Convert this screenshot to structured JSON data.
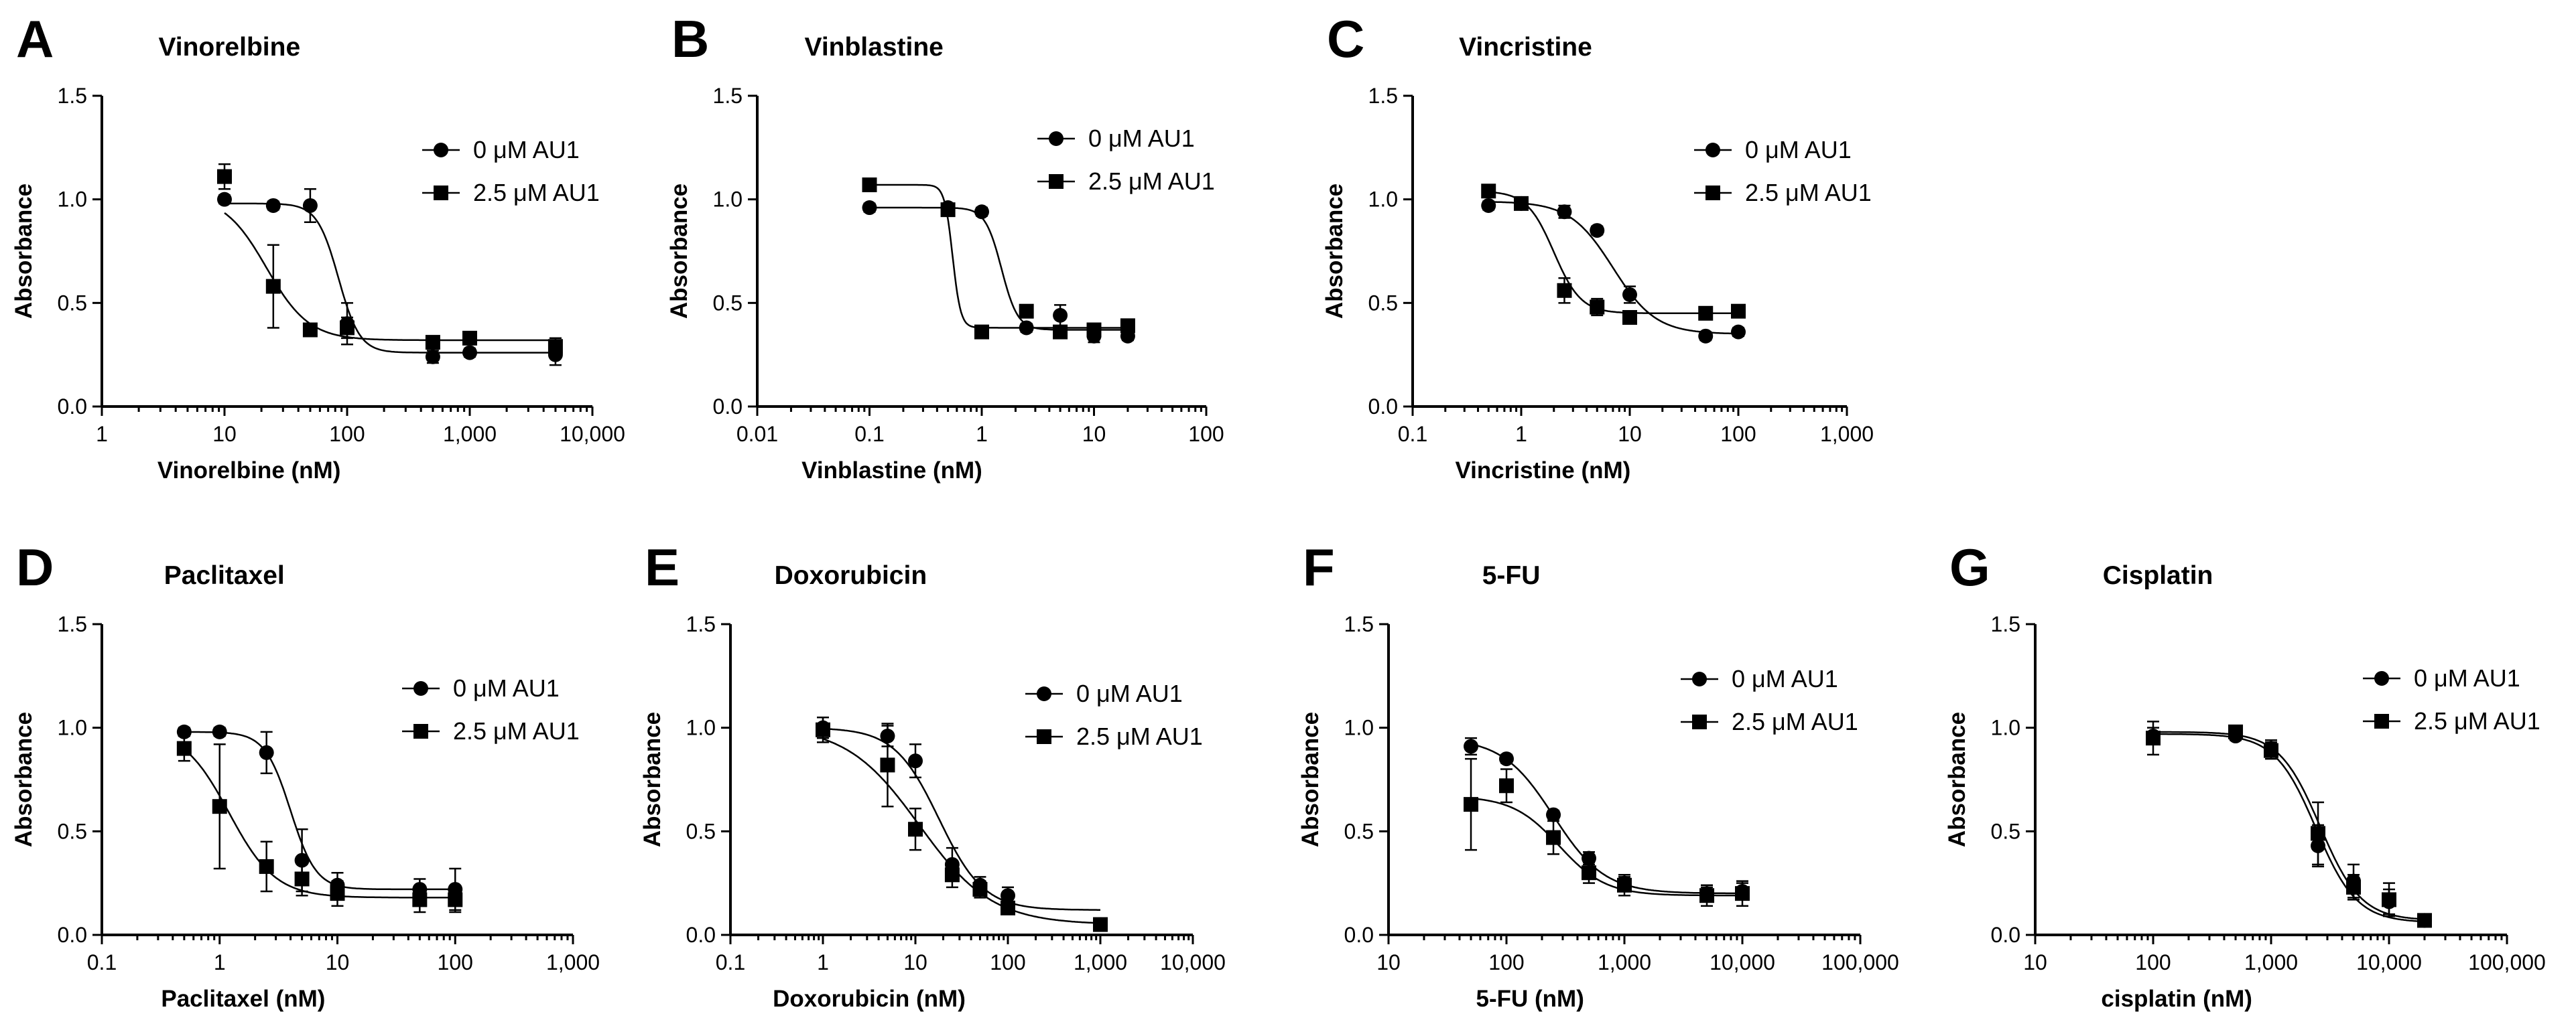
{
  "chart_data": [
    {
      "type": "scatter",
      "letter": "A",
      "title": "Vinorelbine",
      "xlabel": "Vinorelbine (nM)",
      "ylabel": "Absorbance",
      "xscale": "log",
      "xlim": [
        1,
        10000
      ],
      "ylim": [
        0,
        1.5
      ],
      "xticks": [
        1,
        10,
        100,
        1000,
        10000
      ],
      "xtick_labels": [
        "1",
        "10",
        "100",
        "1,000",
        "10,000"
      ],
      "yticks": [
        0,
        0.5,
        1,
        1.5
      ],
      "ytick_labels": [
        "0.0",
        "0.5",
        "1.0",
        "1.5"
      ],
      "legend_position": "top-right",
      "series": [
        {
          "name": "0 μM AU1",
          "marker": "circle",
          "x": [
            10,
            25,
            50,
            100,
            500,
            1000,
            5000
          ],
          "y": [
            1.0,
            0.97,
            0.97,
            0.4,
            0.24,
            0.26,
            0.25
          ],
          "err": [
            0.02,
            0.02,
            0.08,
            0.1,
            0.03,
            0.02,
            0.05
          ],
          "fit": {
            "top": 0.98,
            "bottom": 0.26,
            "ec50": 85,
            "hill": 5
          }
        },
        {
          "name": "2.5 μM AU1",
          "marker": "square",
          "x": [
            10,
            25,
            50,
            100,
            500,
            1000,
            5000
          ],
          "y": [
            1.11,
            0.58,
            0.37,
            0.38,
            0.31,
            0.33,
            0.29
          ],
          "err": [
            0.06,
            0.2,
            0.02,
            0.05,
            0.02,
            0.02,
            0.04
          ],
          "fit": {
            "top": 1.02,
            "bottom": 0.32,
            "ec50": 22,
            "hill": 2.5
          }
        }
      ]
    },
    {
      "type": "scatter",
      "letter": "B",
      "title": "Vinblastine",
      "xlabel": "Vinblastine (nM)",
      "ylabel": "Absorbance",
      "xscale": "log",
      "xlim": [
        0.01,
        100
      ],
      "ylim": [
        0,
        1.5
      ],
      "xticks": [
        0.01,
        0.1,
        1,
        10,
        100
      ],
      "xtick_labels": [
        "0.01",
        "0.1",
        "1",
        "10",
        "100"
      ],
      "yticks": [
        0,
        0.5,
        1,
        1.5
      ],
      "ytick_labels": [
        "0.0",
        "0.5",
        "1.0",
        "1.5"
      ],
      "legend_position": "top-right",
      "series": [
        {
          "name": "0 μM AU1",
          "marker": "circle",
          "x": [
            0.1,
            0.5,
            1,
            2.5,
            5,
            10,
            20
          ],
          "y": [
            0.96,
            0.96,
            0.94,
            0.38,
            0.44,
            0.34,
            0.34
          ],
          "err": [
            0.02,
            0.02,
            0.02,
            0.02,
            0.05,
            0.03,
            0.02
          ],
          "fit": {
            "top": 0.96,
            "bottom": 0.37,
            "ec50": 1.5,
            "hill": 6
          }
        },
        {
          "name": "2.5 μM AU1",
          "marker": "square",
          "x": [
            0.1,
            0.5,
            1,
            2.5,
            5,
            10,
            20
          ],
          "y": [
            1.07,
            0.95,
            0.36,
            0.46,
            0.36,
            0.37,
            0.39
          ],
          "err": [
            0.01,
            0.02,
            0.01,
            0.02,
            0.02,
            0.03,
            0.02
          ],
          "fit": {
            "top": 1.07,
            "bottom": 0.38,
            "ec50": 0.55,
            "hill": 12
          }
        }
      ]
    },
    {
      "type": "scatter",
      "letter": "C",
      "title": "Vincristine",
      "xlabel": "Vincristine (nM)",
      "ylabel": "Absorbance",
      "xscale": "log",
      "xlim": [
        0.1,
        1000
      ],
      "ylim": [
        0,
        1.5
      ],
      "xticks": [
        0.1,
        1,
        10,
        100,
        1000
      ],
      "xtick_labels": [
        "0.1",
        "1",
        "10",
        "100",
        "1,000"
      ],
      "yticks": [
        0,
        0.5,
        1,
        1.5
      ],
      "ytick_labels": [
        "0.0",
        "0.5",
        "1.0",
        "1.5"
      ],
      "legend_position": "top-right",
      "series": [
        {
          "name": "0 μM AU1",
          "marker": "circle",
          "x": [
            0.5,
            1,
            2.5,
            5,
            10,
            50,
            100
          ],
          "y": [
            0.97,
            0.98,
            0.94,
            0.85,
            0.54,
            0.34,
            0.36
          ],
          "err": [
            0.02,
            0.02,
            0.03,
            0.02,
            0.04,
            0.02,
            0.02
          ],
          "fit": {
            "top": 0.99,
            "bottom": 0.35,
            "ec50": 7,
            "hill": 2.2
          }
        },
        {
          "name": "2.5 μM AU1",
          "marker": "square",
          "x": [
            0.5,
            1,
            2.5,
            5,
            10,
            50,
            100
          ],
          "y": [
            1.04,
            0.98,
            0.56,
            0.48,
            0.43,
            0.45,
            0.46
          ],
          "err": [
            0.02,
            0.02,
            0.06,
            0.04,
            0.03,
            0.02,
            0.02
          ],
          "fit": {
            "top": 1.04,
            "bottom": 0.45,
            "ec50": 2,
            "hill": 3.5
          }
        }
      ]
    },
    {
      "type": "scatter",
      "letter": "D",
      "title": "Paclitaxel",
      "xlabel": "Paclitaxel (nM)",
      "ylabel": "Absorbance",
      "xscale": "log",
      "xlim": [
        0.1,
        1000
      ],
      "ylim": [
        0,
        1.5
      ],
      "xticks": [
        0.1,
        1,
        10,
        100,
        1000
      ],
      "xtick_labels": [
        "0.1",
        "1",
        "10",
        "100",
        "1,000"
      ],
      "yticks": [
        0,
        0.5,
        1,
        1.5
      ],
      "ytick_labels": [
        "0.0",
        "0.5",
        "1.0",
        "1.5"
      ],
      "legend_position": "top-right",
      "series": [
        {
          "name": "0 μM AU1",
          "marker": "circle",
          "x": [
            0.5,
            1,
            2.5,
            5,
            10,
            50,
            100
          ],
          "y": [
            0.98,
            0.98,
            0.88,
            0.36,
            0.24,
            0.22,
            0.22
          ],
          "err": [
            0.02,
            0.02,
            0.1,
            0.15,
            0.06,
            0.05,
            0.1
          ],
          "fit": {
            "top": 0.98,
            "bottom": 0.22,
            "ec50": 4,
            "hill": 4
          }
        },
        {
          "name": "2.5 μM AU1",
          "marker": "square",
          "x": [
            0.5,
            1,
            2.5,
            5,
            10,
            50,
            100
          ],
          "y": [
            0.9,
            0.62,
            0.33,
            0.27,
            0.2,
            0.17,
            0.17
          ],
          "err": [
            0.06,
            0.3,
            0.12,
            0.08,
            0.06,
            0.06,
            0.06
          ],
          "fit": {
            "top": 1.0,
            "bottom": 0.18,
            "ec50": 1.2,
            "hill": 2.2
          }
        }
      ]
    },
    {
      "type": "scatter",
      "letter": "E",
      "title": "Doxorubicin",
      "xlabel": "Doxorubicin (nM)",
      "ylabel": "Absorbance",
      "xscale": "log",
      "xlim": [
        0.1,
        10000
      ],
      "ylim": [
        0,
        1.5
      ],
      "xticks": [
        0.1,
        1,
        10,
        100,
        1000,
        10000
      ],
      "xtick_labels": [
        "0.1",
        "1",
        "10",
        "100",
        "1,000",
        "10,000"
      ],
      "yticks": [
        0,
        0.5,
        1,
        1.5
      ],
      "ytick_labels": [
        "0.0",
        "0.5",
        "1.0",
        "1.5"
      ],
      "legend_position": "top-right",
      "series": [
        {
          "name": "0 μM AU1",
          "marker": "circle",
          "x": [
            1,
            5,
            10,
            25,
            50,
            100,
            1000
          ],
          "y": [
            1.0,
            0.96,
            0.84,
            0.34,
            0.24,
            0.19,
            0.05
          ],
          "err": [
            0.05,
            0.05,
            0.08,
            0.08,
            0.04,
            0.04,
            0.02
          ],
          "fit": {
            "top": 1.0,
            "bottom": 0.12,
            "ec50": 18,
            "hill": 1.8
          }
        },
        {
          "name": "2.5 μM AU1",
          "marker": "square",
          "x": [
            1,
            5,
            10,
            25,
            50,
            100,
            1000
          ],
          "y": [
            0.99,
            0.82,
            0.51,
            0.29,
            0.22,
            0.13,
            0.05
          ],
          "err": [
            0.06,
            0.2,
            0.1,
            0.06,
            0.04,
            0.03,
            0.02
          ],
          "fit": {
            "top": 1.01,
            "bottom": 0.05,
            "ec50": 11,
            "hill": 1.1
          }
        }
      ]
    },
    {
      "type": "scatter",
      "letter": "F",
      "title": "5-FU",
      "xlabel": "5-FU (nM)",
      "ylabel": "Absorbance",
      "xscale": "log",
      "xlim": [
        10,
        100000
      ],
      "ylim": [
        0,
        1.5
      ],
      "xticks": [
        10,
        100,
        1000,
        10000,
        100000
      ],
      "xtick_labels": [
        "10",
        "100",
        "1,000",
        "10,000",
        "100,000"
      ],
      "yticks": [
        0,
        0.5,
        1,
        1.5
      ],
      "ytick_labels": [
        "0.0",
        "0.5",
        "1.0",
        "1.5"
      ],
      "legend_position": "top-right",
      "series": [
        {
          "name": "0 μM AU1",
          "marker": "circle",
          "x": [
            50,
            100,
            250,
            500,
            1000,
            5000,
            10000
          ],
          "y": [
            0.91,
            0.85,
            0.58,
            0.37,
            0.25,
            0.2,
            0.21
          ],
          "err": [
            0.04,
            0.02,
            0.02,
            0.03,
            0.03,
            0.03,
            0.04
          ],
          "fit": {
            "top": 0.95,
            "bottom": 0.2,
            "ec50": 250,
            "hill": 2
          }
        },
        {
          "name": "2.5 μM AU1",
          "marker": "square",
          "x": [
            50,
            100,
            250,
            500,
            1000,
            5000,
            10000
          ],
          "y": [
            0.63,
            0.72,
            0.47,
            0.3,
            0.24,
            0.19,
            0.2
          ],
          "err": [
            0.22,
            0.08,
            0.08,
            0.05,
            0.05,
            0.05,
            0.06
          ],
          "fit": {
            "top": 0.67,
            "bottom": 0.19,
            "ec50": 280,
            "hill": 2.2
          }
        }
      ]
    },
    {
      "type": "scatter",
      "letter": "G",
      "title": "Cisplatin",
      "xlabel": "cisplatin (nM)",
      "ylabel": "Absorbance",
      "xscale": "log",
      "xlim": [
        10,
        100000
      ],
      "ylim": [
        0,
        1.5
      ],
      "xticks": [
        10,
        100,
        1000,
        10000,
        100000
      ],
      "xtick_labels": [
        "10",
        "100",
        "1,000",
        "10,000",
        "100,000"
      ],
      "yticks": [
        0,
        0.5,
        1,
        1.5
      ],
      "ytick_labels": [
        "0.0",
        "0.5",
        "1.0",
        "1.5"
      ],
      "legend_position": "top-right",
      "series": [
        {
          "name": "0 μM AU1",
          "marker": "circle",
          "x": [
            100,
            500,
            1000,
            2500,
            5000,
            10000,
            20000
          ],
          "y": [
            0.96,
            0.96,
            0.9,
            0.43,
            0.26,
            0.16,
            0.07
          ],
          "err": [
            0.04,
            0.02,
            0.04,
            0.1,
            0.08,
            0.06,
            0.02
          ],
          "fit": {
            "top": 0.97,
            "bottom": 0.06,
            "ec50": 2400,
            "hill": 2.5
          }
        },
        {
          "name": "2.5 μM AU1",
          "marker": "square",
          "x": [
            100,
            500,
            1000,
            2500,
            5000,
            10000,
            20000
          ],
          "y": [
            0.95,
            0.98,
            0.89,
            0.49,
            0.23,
            0.17,
            0.07
          ],
          "err": [
            0.08,
            0.03,
            0.04,
            0.15,
            0.06,
            0.08,
            0.02
          ],
          "fit": {
            "top": 0.98,
            "bottom": 0.07,
            "ec50": 2600,
            "hill": 2.5
          }
        }
      ]
    }
  ]
}
